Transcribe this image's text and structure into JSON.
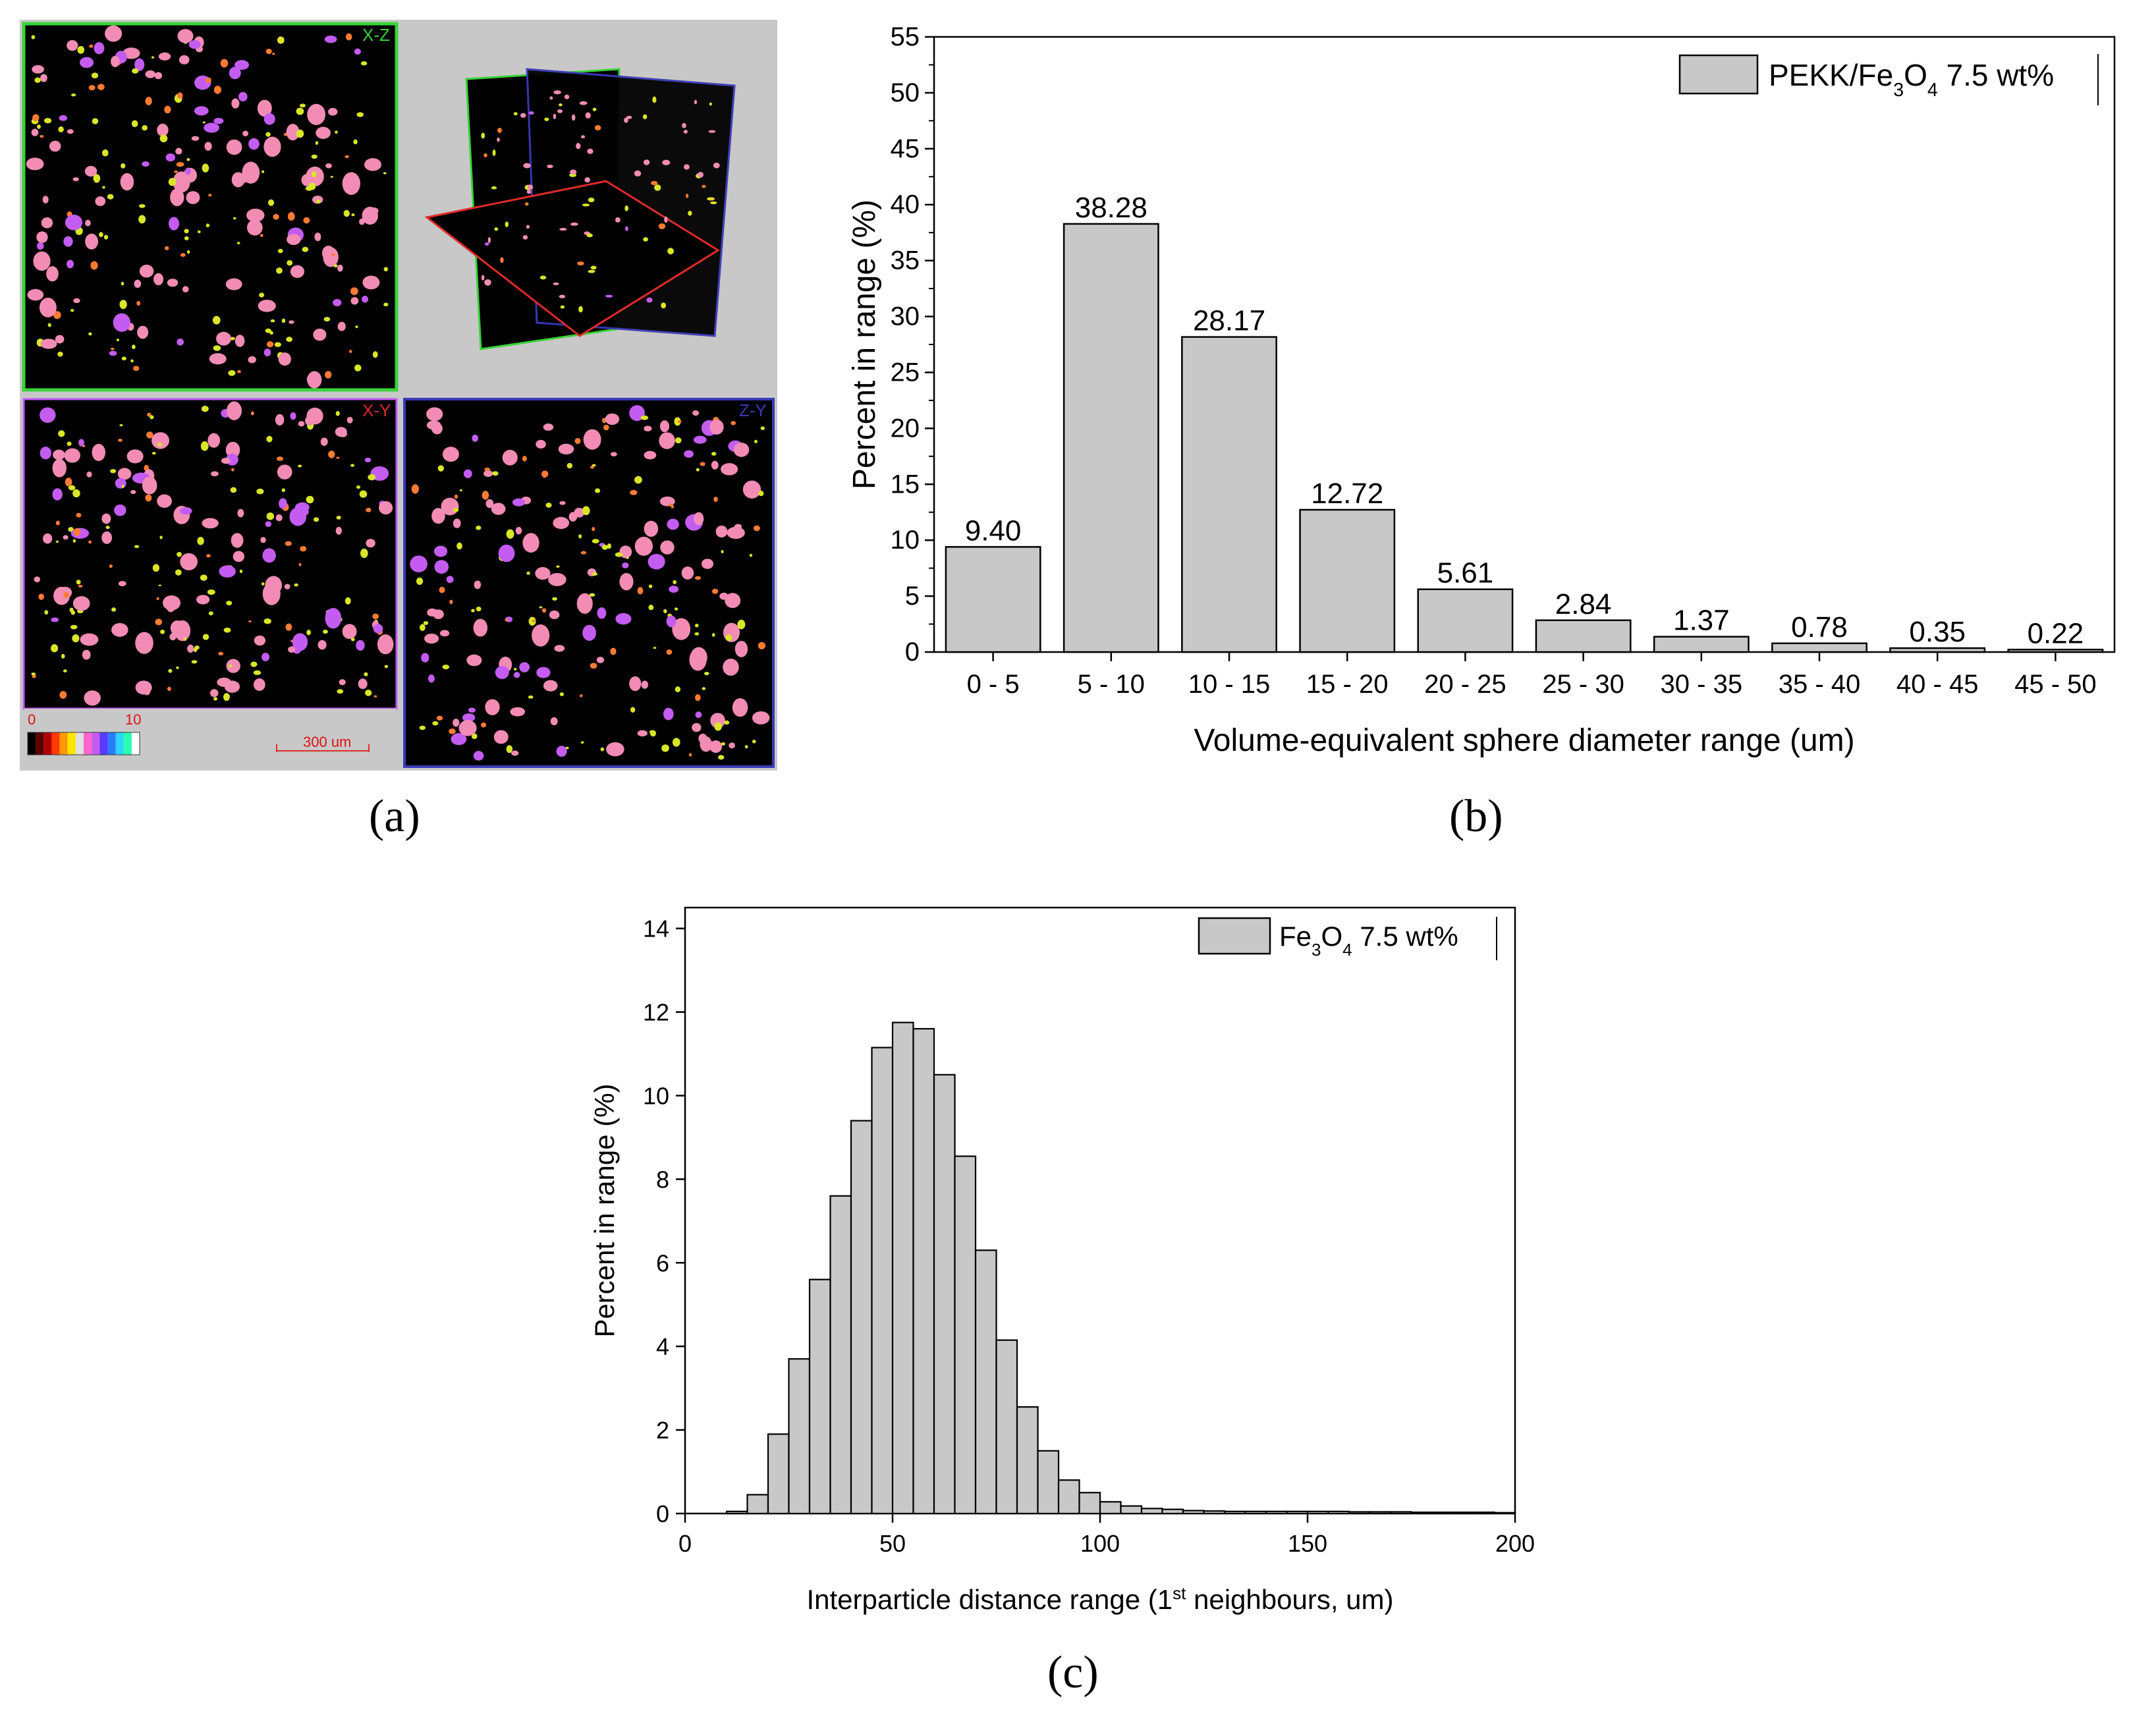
{
  "captions": {
    "a": "(a)",
    "b": "(b)",
    "c": "(c)"
  },
  "panel_a": {
    "view_labels": {
      "top_left": "X-Z",
      "bottom_left": "X-Y",
      "bottom_right": "Z-Y"
    },
    "colorbar": {
      "min_label": "0",
      "max_label": "10"
    },
    "scalebar": {
      "label": "300 um"
    },
    "colors": {
      "background": "#000000",
      "pink": "#f28cb4",
      "magenta": "#c45cf2",
      "yellow": "#d9e627",
      "orange": "#ff7b33",
      "frame_green": "#38d438",
      "frame_blue": "#3a3ab8",
      "frame_red": "#e02a2a",
      "gray": "#c8c8c8"
    }
  },
  "chart_data": [
    {
      "id": "b",
      "type": "bar",
      "title": "",
      "xlabel": "Volume-equivalent sphere diameter range (um)",
      "ylabel": "Percent in range (%)",
      "ylim": [
        0,
        55
      ],
      "yticks": [
        0,
        5,
        10,
        15,
        20,
        25,
        30,
        35,
        40,
        45,
        50,
        55
      ],
      "legend": {
        "label_parts": [
          "PEKK/Fe",
          "3",
          "O",
          "4",
          " 7.5 wt%"
        ],
        "position": "top-right"
      },
      "categories": [
        "0 - 5",
        "5 - 10",
        "10 - 15",
        "15 - 20",
        "20 - 25",
        "25 - 30",
        "30 - 35",
        "35 - 40",
        "40 - 45",
        "45 - 50"
      ],
      "values": [
        9.4,
        38.28,
        28.17,
        12.72,
        5.61,
        2.84,
        1.37,
        0.78,
        0.35,
        0.22
      ],
      "value_labels": [
        "9.40",
        "38.28",
        "28.17",
        "12.72",
        "5.61",
        "2.84",
        "1.37",
        "0.78",
        "0.35",
        "0.22"
      ],
      "bar_color": "#c8c8c8"
    },
    {
      "id": "c",
      "type": "bar",
      "title": "",
      "xlabel_parts": [
        "Interparticle distance range (1",
        "st",
        " neighbours, um)"
      ],
      "ylabel": "Percent in range (%)",
      "xlim": [
        0,
        200
      ],
      "ylim": [
        0,
        14.5
      ],
      "xticks": [
        0,
        50,
        100,
        150,
        200
      ],
      "yticks": [
        0,
        2,
        4,
        6,
        8,
        10,
        12,
        14
      ],
      "legend": {
        "label_parts": [
          "Fe",
          "3",
          "O",
          "4",
          " 7.5 wt%"
        ],
        "position": "top-right"
      },
      "bin_width": 5,
      "bin_starts": [
        10,
        15,
        20,
        25,
        30,
        35,
        40,
        45,
        50,
        55,
        60,
        65,
        70,
        75,
        80,
        85,
        90,
        95,
        100,
        105,
        110,
        115,
        120,
        125,
        130,
        135,
        140,
        145,
        150,
        155,
        160,
        165,
        170,
        175,
        180,
        185,
        190,
        195
      ],
      "values": [
        0.05,
        0.45,
        1.9,
        3.7,
        5.6,
        7.6,
        9.4,
        11.15,
        11.75,
        11.6,
        10.5,
        8.55,
        6.3,
        4.15,
        2.55,
        1.5,
        0.8,
        0.5,
        0.28,
        0.18,
        0.12,
        0.1,
        0.07,
        0.06,
        0.05,
        0.05,
        0.05,
        0.05,
        0.05,
        0.05,
        0.04,
        0.04,
        0.04,
        0.03,
        0.03,
        0.03,
        0.03,
        0.02
      ],
      "bar_color": "#c8c8c8"
    }
  ]
}
